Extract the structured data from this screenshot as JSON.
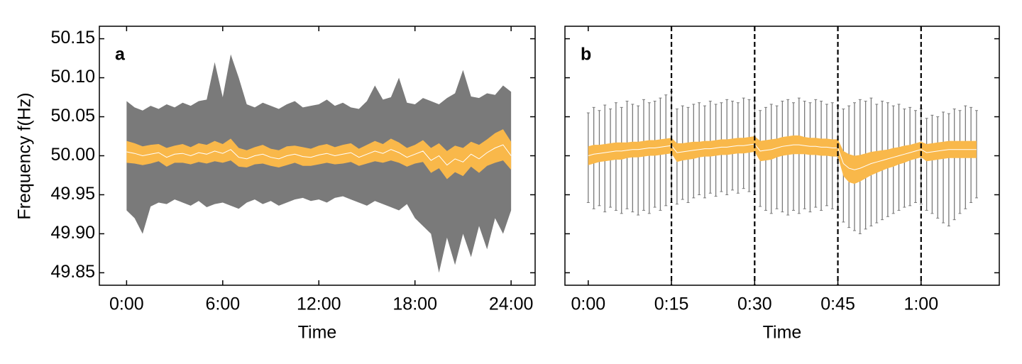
{
  "chart_data": [
    {
      "type": "band",
      "label": "a",
      "ylabel": "Frequency f(Hz)",
      "xlabel": "Time",
      "xlim": [
        -1.7,
        25.5
      ],
      "ylim": [
        49.834,
        50.166
      ],
      "xticks": [
        {
          "value": 0,
          "label": "0:00"
        },
        {
          "value": 6,
          "label": "6:00"
        },
        {
          "value": 12,
          "label": "12:00"
        },
        {
          "value": 18,
          "label": "18:00"
        },
        {
          "value": 24,
          "label": "24:00"
        }
      ],
      "yticks": [
        50.15,
        {
          "value": 50.1,
          "label": "50.10"
        },
        50.05,
        {
          "value": 50,
          "label": "50.00"
        },
        49.95,
        {
          "value": 49.9,
          "label": "49.90"
        },
        49.85
      ],
      "show_ytick_labels": true,
      "range_color": "#7a7a7a",
      "std_color": "#f9b84a",
      "mean_color": "#ffffff",
      "x": [
        0,
        0.5,
        1,
        1.5,
        2,
        2.5,
        3,
        3.5,
        4,
        4.5,
        5,
        5.5,
        6,
        6.5,
        7,
        7.5,
        8,
        8.5,
        9,
        9.5,
        10,
        10.5,
        11,
        11.5,
        12,
        12.5,
        13,
        13.5,
        14,
        14.5,
        15,
        15.5,
        16,
        16.5,
        17,
        17.5,
        18,
        18.5,
        19,
        19.5,
        20,
        20.5,
        21,
        21.5,
        22,
        22.5,
        23,
        23.5,
        24
      ],
      "mean": [
        50.005,
        50.003,
        50.0,
        50.002,
        50.004,
        49.998,
        50.002,
        50.003,
        50.0,
        50.004,
        50.002,
        50.006,
        50.003,
        50.008,
        49.998,
        49.996,
        50.0,
        50.002,
        49.998,
        49.996,
        50.0,
        50.002,
        49.999,
        49.998,
        50.001,
        50.003,
        50.0,
        50.002,
        50.004,
        49.998,
        50.002,
        50.006,
        50.003,
        50.008,
        50.004,
        49.998,
        50.002,
        50.006,
        49.994,
        50.0,
        49.988,
        49.996,
        49.992,
        50.002,
        49.996,
        50.004,
        50.01,
        50.014,
        50.0
      ],
      "std": [
        0.014,
        0.013,
        0.012,
        0.012,
        0.011,
        0.012,
        0.011,
        0.012,
        0.011,
        0.012,
        0.012,
        0.013,
        0.012,
        0.014,
        0.012,
        0.011,
        0.011,
        0.012,
        0.011,
        0.011,
        0.012,
        0.011,
        0.012,
        0.011,
        0.012,
        0.012,
        0.011,
        0.012,
        0.012,
        0.011,
        0.012,
        0.013,
        0.012,
        0.014,
        0.013,
        0.012,
        0.012,
        0.014,
        0.016,
        0.016,
        0.018,
        0.017,
        0.018,
        0.016,
        0.018,
        0.017,
        0.019,
        0.02,
        0.018
      ],
      "max": [
        50.07,
        50.062,
        50.058,
        50.064,
        50.06,
        50.066,
        50.062,
        50.068,
        50.064,
        50.07,
        50.072,
        50.12,
        50.075,
        50.13,
        50.1,
        50.066,
        50.062,
        50.068,
        50.064,
        50.06,
        50.066,
        50.07,
        50.062,
        50.064,
        50.066,
        50.072,
        50.064,
        50.068,
        50.062,
        50.06,
        50.07,
        50.09,
        50.072,
        50.075,
        50.1,
        50.068,
        50.066,
        50.074,
        50.07,
        50.066,
        50.074,
        50.08,
        50.11,
        50.076,
        50.074,
        50.08,
        50.078,
        50.09,
        50.082
      ],
      "min": [
        49.93,
        49.92,
        49.9,
        49.935,
        49.94,
        49.938,
        49.944,
        49.94,
        49.936,
        49.942,
        49.934,
        49.938,
        49.94,
        49.936,
        49.932,
        49.94,
        49.944,
        49.938,
        49.942,
        49.936,
        49.94,
        49.944,
        49.946,
        49.942,
        49.944,
        49.94,
        49.946,
        49.948,
        49.944,
        49.94,
        49.936,
        49.942,
        49.938,
        49.934,
        49.93,
        49.938,
        49.92,
        49.91,
        49.9,
        49.85,
        49.895,
        49.86,
        49.9,
        49.87,
        49.91,
        49.88,
        49.92,
        49.9,
        49.93
      ]
    },
    {
      "type": "errorbar",
      "label": "b",
      "xlabel": "Time",
      "xlim": [
        -4.2,
        74.1
      ],
      "ylim": [
        49.834,
        50.166
      ],
      "xticks": [
        {
          "value": 0,
          "label": "0:00"
        },
        {
          "value": 15,
          "label": "0:15"
        },
        {
          "value": 30,
          "label": "0:30"
        },
        {
          "value": 45,
          "label": "0:45"
        },
        {
          "value": 60,
          "label": "1:00"
        }
      ],
      "yticks": [
        50.15,
        50.1,
        50.05,
        50,
        49.95,
        49.9,
        49.85
      ],
      "show_ytick_labels": false,
      "vlines": [
        15,
        30,
        45,
        60
      ],
      "range_color": "#7a7a7a",
      "std_color": "#f9b84a",
      "mean_color": "#ffffff",
      "x": [
        0,
        1,
        2,
        3,
        4,
        5,
        6,
        7,
        8,
        9,
        10,
        11,
        12,
        13,
        14,
        15,
        16,
        17,
        18,
        19,
        20,
        21,
        22,
        23,
        24,
        25,
        26,
        27,
        28,
        29,
        30,
        31,
        32,
        33,
        34,
        35,
        36,
        37,
        38,
        39,
        40,
        41,
        42,
        43,
        44,
        45,
        46,
        47,
        48,
        49,
        50,
        51,
        52,
        53,
        54,
        55,
        56,
        57,
        58,
        59,
        60,
        61,
        62,
        63,
        64,
        65,
        66,
        67,
        68,
        69,
        70
      ],
      "mean": [
        50.0,
        50.002,
        50.003,
        50.004,
        50.005,
        50.006,
        50.006,
        50.007,
        50.008,
        50.008,
        50.009,
        50.01,
        50.01,
        50.011,
        50.012,
        50.013,
        50.004,
        50.005,
        50.006,
        50.007,
        50.008,
        50.009,
        50.009,
        50.01,
        50.011,
        50.011,
        50.012,
        50.013,
        50.013,
        50.014,
        50.015,
        50.006,
        50.007,
        50.008,
        50.01,
        50.012,
        50.013,
        50.014,
        50.014,
        50.013,
        50.012,
        50.012,
        50.011,
        50.011,
        50.01,
        50.01,
        49.99,
        49.984,
        49.982,
        49.984,
        49.987,
        49.99,
        49.992,
        49.994,
        49.996,
        49.998,
        50.0,
        50.002,
        50.004,
        50.006,
        50.008,
        50.004,
        50.005,
        50.006,
        50.007,
        50.008,
        50.008,
        50.008,
        50.008,
        50.008,
        50.008
      ],
      "std": [
        0.012,
        0.012,
        0.011,
        0.011,
        0.011,
        0.011,
        0.011,
        0.01,
        0.01,
        0.01,
        0.01,
        0.01,
        0.01,
        0.01,
        0.01,
        0.01,
        0.012,
        0.011,
        0.011,
        0.011,
        0.01,
        0.01,
        0.01,
        0.01,
        0.01,
        0.01,
        0.01,
        0.01,
        0.01,
        0.01,
        0.01,
        0.013,
        0.013,
        0.013,
        0.012,
        0.012,
        0.012,
        0.012,
        0.012,
        0.011,
        0.011,
        0.011,
        0.011,
        0.011,
        0.011,
        0.011,
        0.016,
        0.018,
        0.018,
        0.017,
        0.016,
        0.015,
        0.014,
        0.013,
        0.012,
        0.012,
        0.011,
        0.011,
        0.01,
        0.01,
        0.01,
        0.011,
        0.011,
        0.011,
        0.011,
        0.011,
        0.011,
        0.011,
        0.011,
        0.011,
        0.011
      ],
      "max": [
        50.055,
        50.062,
        50.058,
        50.065,
        50.06,
        50.068,
        50.062,
        50.07,
        50.066,
        50.064,
        50.072,
        50.068,
        50.07,
        50.074,
        50.078,
        50.082,
        50.06,
        50.064,
        50.062,
        50.066,
        50.068,
        50.064,
        50.07,
        50.066,
        50.068,
        50.072,
        50.07,
        50.068,
        50.074,
        50.072,
        50.07,
        50.058,
        50.062,
        50.066,
        50.064,
        50.07,
        50.072,
        50.068,
        50.074,
        50.07,
        50.068,
        50.072,
        50.07,
        50.066,
        50.068,
        50.064,
        50.06,
        50.064,
        50.068,
        50.072,
        50.07,
        50.074,
        50.066,
        50.07,
        50.068,
        50.064,
        50.066,
        50.06,
        50.062,
        50.058,
        50.06,
        50.048,
        50.052,
        50.05,
        50.056,
        50.054,
        50.06,
        50.058,
        50.064,
        50.062,
        50.058
      ],
      "min": [
        49.94,
        49.932,
        49.936,
        49.928,
        49.934,
        49.93,
        49.926,
        49.932,
        49.928,
        49.924,
        49.93,
        49.926,
        49.934,
        49.93,
        49.936,
        49.94,
        49.938,
        49.944,
        49.94,
        49.946,
        49.95,
        49.946,
        49.952,
        49.948,
        49.954,
        49.95,
        49.956,
        49.952,
        49.958,
        49.954,
        49.95,
        49.935,
        49.93,
        49.926,
        49.932,
        49.928,
        49.924,
        49.93,
        49.926,
        49.932,
        49.928,
        49.934,
        49.93,
        49.936,
        49.932,
        49.93,
        49.915,
        49.908,
        49.904,
        49.9,
        49.906,
        49.91,
        49.914,
        49.918,
        49.922,
        49.926,
        49.93,
        49.934,
        49.936,
        49.94,
        49.938,
        49.93,
        49.926,
        49.92,
        49.914,
        49.91,
        49.918,
        49.926,
        49.932,
        49.94,
        49.946
      ]
    }
  ]
}
